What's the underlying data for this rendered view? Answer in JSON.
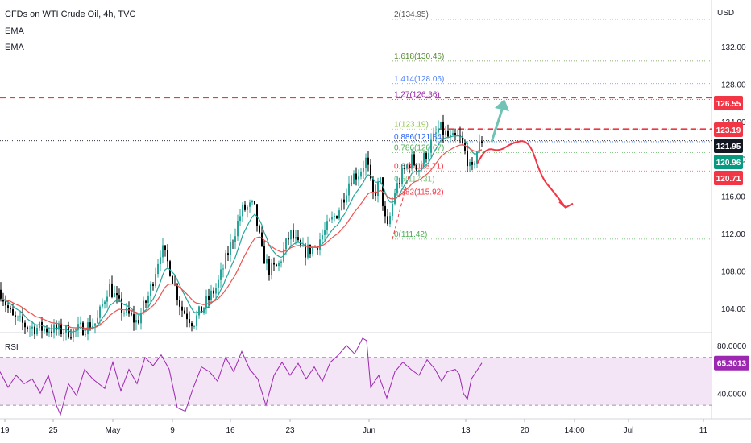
{
  "header": {
    "symbol": "CFDs on WTI Crude Oil, 4h, TVC",
    "indicator1": "EMA",
    "indicator2": "EMA"
  },
  "colors": {
    "up": "#26a69a",
    "down": "#000000",
    "ema_fast": "#26a69a",
    "ema_slow": "#ef5350",
    "rsi_line": "#9c27b0",
    "rsi_band": "#f3e5f5",
    "red_dashed": "#f23645",
    "arrow_up": "#70c3b5",
    "arrow_down": "#f23645",
    "tag_red": "#f23645",
    "tag_green": "#089981",
    "tag_dark": "#131722",
    "tag_purple": "#9c27b0"
  },
  "chart_data": {
    "type": "candlestick",
    "title": "CFDs on WTI Crude Oil, 4h, TVC",
    "currency_label": "USD",
    "ylim": [
      101.5,
      137
    ],
    "y_ticks": [
      104.0,
      108.0,
      112.0,
      116.0,
      120.0,
      124.0,
      128.0,
      132.0
    ],
    "x_ticks": [
      "19",
      "25",
      "May",
      "9",
      "16",
      "23",
      "Jun",
      "13",
      "20",
      "14:00",
      "Jul",
      "11"
    ],
    "indicators": [
      "EMA",
      "EMA"
    ],
    "price_path": [
      [
        0,
        106.0
      ],
      [
        15,
        103.0
      ],
      [
        35,
        102.0
      ],
      [
        60,
        101.8
      ],
      [
        90,
        101.5
      ],
      [
        120,
        102.5
      ],
      [
        135,
        106.5
      ],
      [
        150,
        104.0
      ],
      [
        170,
        102.5
      ],
      [
        185,
        105.5
      ],
      [
        200,
        110.5
      ],
      [
        210,
        108.5
      ],
      [
        225,
        104.0
      ],
      [
        240,
        102.5
      ],
      [
        255,
        104.5
      ],
      [
        270,
        106.5
      ],
      [
        285,
        110.5
      ],
      [
        300,
        114.5
      ],
      [
        315,
        115.0
      ],
      [
        325,
        110.0
      ],
      [
        335,
        108.0
      ],
      [
        345,
        108.5
      ],
      [
        360,
        112.0
      ],
      [
        375,
        110.0
      ],
      [
        390,
        110.5
      ],
      [
        405,
        112.5
      ],
      [
        420,
        114.5
      ],
      [
        435,
        118.0
      ],
      [
        445,
        118.5
      ],
      [
        455,
        120.0
      ],
      [
        462,
        116.0
      ],
      [
        472,
        117.5
      ],
      [
        480,
        112.0
      ],
      [
        490,
        116.5
      ],
      [
        500,
        118.5
      ],
      [
        510,
        120.0
      ],
      [
        520,
        119.0
      ],
      [
        530,
        120.8
      ],
      [
        545,
        123.3
      ],
      [
        560,
        122.0
      ],
      [
        570,
        122.3
      ],
      [
        580,
        120.0
      ],
      [
        585,
        118.2
      ],
      [
        590,
        120.5
      ],
      [
        598,
        122.0
      ]
    ],
    "fibonacci": {
      "levels": [
        {
          "ratio": "0",
          "price": 111.42,
          "label": "0(111.42)",
          "color": "#4caf50"
        },
        {
          "ratio": "0.382",
          "price": 115.92,
          "label": "0.382(115.92)",
          "color": "#f23645"
        },
        {
          "ratio": "0.5",
          "price": 117.31,
          "label": "0.5(117.31)",
          "color": "#81c784"
        },
        {
          "ratio": "0.618",
          "price": 118.71,
          "label": "0.618(118.71)",
          "color": "#f23645"
        },
        {
          "ratio": "0.786",
          "price": 120.67,
          "label": "0.786(120.67)",
          "color": "#4caf50"
        },
        {
          "ratio": "0.886",
          "price": 121.84,
          "label": "0.886(121.84)",
          "color": "#2962ff"
        },
        {
          "ratio": "1",
          "price": 123.19,
          "label": "1(123.19)",
          "color": "#8bc34a"
        },
        {
          "ratio": "1.27",
          "price": 126.36,
          "label": "1.27(126.36)",
          "color": "#9c27b0"
        },
        {
          "ratio": "1.414",
          "price": 128.06,
          "label": "1.414(128.06)",
          "color": "#4f80ff"
        },
        {
          "ratio": "1.618",
          "price": 130.46,
          "label": "1.618(130.46)",
          "color": "#558b2f"
        },
        {
          "ratio": "2",
          "price": 134.95,
          "label": "2(134.95)",
          "color": "#555555"
        }
      ]
    },
    "horizontal_lines": [
      {
        "price": 126.55,
        "style": "dashed",
        "color": "#f23645"
      },
      {
        "price": 123.19,
        "style": "dashed",
        "color": "#f23645"
      },
      {
        "price": 121.95,
        "style": "dotted",
        "color": "#131722"
      }
    ],
    "price_tags": [
      {
        "value": "126.55",
        "price": 126.55,
        "bg": "#f23645"
      },
      {
        "value": "123.19",
        "price": 123.19,
        "bg": "#f23645"
      },
      {
        "value": "121.95",
        "price": 121.95,
        "bg": "#131722"
      },
      {
        "value": "120.96",
        "price": 120.96,
        "bg": "#089981"
      },
      {
        "value": "120.71",
        "price": 120.71,
        "bg": "#f23645"
      }
    ],
    "projection": {
      "up_arrow_target": 126.4,
      "path": [
        [
          0,
          119.5
        ],
        [
          12,
          121.2
        ],
        [
          28,
          120.8
        ],
        [
          45,
          121.8
        ],
        [
          65,
          122.0
        ],
        [
          80,
          118.0
        ],
        [
          95,
          116.5
        ],
        [
          110,
          114.8
        ]
      ]
    },
    "rsi": {
      "label": "RSI",
      "value_tag": "65.3013",
      "upper_band": 70,
      "lower_band": 30,
      "ylim": [
        20,
        90
      ],
      "y_ticks": [
        "80.0000",
        "40.0000"
      ],
      "path": [
        [
          0,
          58
        ],
        [
          10,
          45
        ],
        [
          20,
          55
        ],
        [
          30,
          48
        ],
        [
          40,
          52
        ],
        [
          50,
          40
        ],
        [
          60,
          55
        ],
        [
          70,
          30
        ],
        [
          75,
          22
        ],
        [
          85,
          48
        ],
        [
          95,
          38
        ],
        [
          105,
          60
        ],
        [
          115,
          52
        ],
        [
          130,
          44
        ],
        [
          140,
          66
        ],
        [
          150,
          42
        ],
        [
          160,
          60
        ],
        [
          170,
          48
        ],
        [
          180,
          70
        ],
        [
          190,
          63
        ],
        [
          200,
          72
        ],
        [
          210,
          60
        ],
        [
          220,
          28
        ],
        [
          230,
          25
        ],
        [
          240,
          45
        ],
        [
          250,
          62
        ],
        [
          260,
          58
        ],
        [
          270,
          50
        ],
        [
          280,
          70
        ],
        [
          290,
          58
        ],
        [
          300,
          75
        ],
        [
          310,
          60
        ],
        [
          320,
          52
        ],
        [
          330,
          30
        ],
        [
          340,
          55
        ],
        [
          350,
          66
        ],
        [
          360,
          55
        ],
        [
          370,
          65
        ],
        [
          380,
          52
        ],
        [
          390,
          62
        ],
        [
          400,
          50
        ],
        [
          410,
          66
        ],
        [
          420,
          72
        ],
        [
          430,
          80
        ],
        [
          440,
          73
        ],
        [
          450,
          86
        ],
        [
          455,
          84
        ],
        [
          460,
          45
        ],
        [
          470,
          55
        ],
        [
          480,
          36
        ],
        [
          490,
          58
        ],
        [
          500,
          66
        ],
        [
          510,
          60
        ],
        [
          520,
          55
        ],
        [
          530,
          68
        ],
        [
          540,
          60
        ],
        [
          548,
          50
        ],
        [
          555,
          58
        ],
        [
          565,
          60
        ],
        [
          570,
          56
        ],
        [
          575,
          40
        ],
        [
          580,
          35
        ],
        [
          585,
          52
        ],
        [
          590,
          57
        ],
        [
          598,
          65.3
        ]
      ]
    }
  }
}
